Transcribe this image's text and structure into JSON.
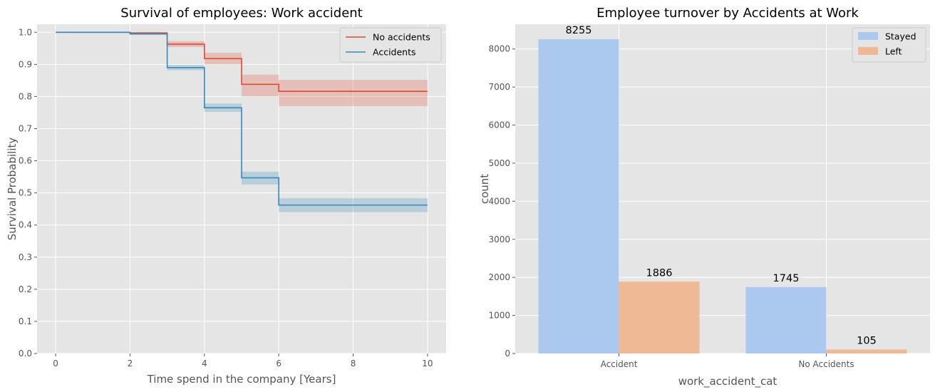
{
  "chart_data": [
    {
      "type": "line",
      "title": "Survival of employees: Work accident",
      "xlabel": "Time spend in the company [Years]",
      "ylabel": "Survival Probability",
      "xlim": [
        -0.5,
        10.5
      ],
      "ylim": [
        0,
        1.025
      ],
      "xticks": [
        0,
        2,
        4,
        6,
        8,
        10
      ],
      "yticks": [
        0.0,
        0.1,
        0.2,
        0.3,
        0.4,
        0.5,
        0.6,
        0.7,
        0.8,
        0.9,
        1.0
      ],
      "grid": true,
      "legend": "top-right",
      "series": [
        {
          "name": "No accidents",
          "color": "#e24a33",
          "step": "post",
          "x": [
            0,
            2,
            3,
            4,
            5,
            6,
            10
          ],
          "y": [
            1.0,
            0.998,
            0.963,
            0.918,
            0.838,
            0.816,
            0.816
          ],
          "ci_lower": [
            1.0,
            0.996,
            0.954,
            0.9,
            0.8,
            0.77,
            0.77
          ],
          "ci_upper": [
            1.0,
            1.0,
            0.972,
            0.936,
            0.868,
            0.852,
            0.852
          ]
        },
        {
          "name": "Accidents",
          "color": "#348abd",
          "step": "post",
          "x": [
            0,
            2,
            3,
            4,
            5,
            6,
            10
          ],
          "y": [
            1.0,
            0.995,
            0.89,
            0.765,
            0.547,
            0.462,
            0.462
          ],
          "ci_lower": [
            1.0,
            0.992,
            0.882,
            0.752,
            0.526,
            0.44,
            0.44
          ],
          "ci_upper": [
            1.0,
            0.998,
            0.898,
            0.778,
            0.566,
            0.483,
            0.483
          ]
        }
      ]
    },
    {
      "type": "bar",
      "title": "Employee turnover by Accidents at Work",
      "xlabel": "work_accident_cat",
      "ylabel": "count",
      "categories": [
        "Accident",
        "No Accidents"
      ],
      "ylim": [
        0,
        8650
      ],
      "yticks": [
        0,
        1000,
        2000,
        3000,
        4000,
        5000,
        6000,
        7000,
        8000
      ],
      "grid": true,
      "legend": "top-right",
      "series": [
        {
          "name": "Stayed",
          "color": "#abc9ee",
          "values": [
            8255,
            1745
          ],
          "labels": [
            "8255",
            "1745"
          ]
        },
        {
          "name": "Left",
          "color": "#f0b995",
          "values": [
            1886,
            105
          ],
          "labels": [
            "1886",
            "105"
          ]
        }
      ]
    }
  ]
}
